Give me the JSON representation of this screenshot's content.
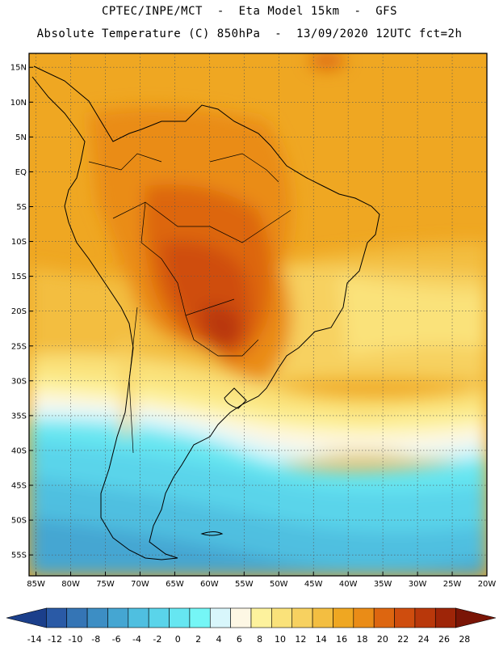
{
  "header": {
    "line1": "CPTEC/INPE/MCT  -  Eta Model 15km  -  GFS",
    "line2": "Absolute Temperature (C) 850hPa  -  13/09/2020 12UTC fct=2h"
  },
  "axes": {
    "lat_labels": [
      "15N",
      "10N",
      "5N",
      "EQ",
      "5S",
      "10S",
      "15S",
      "20S",
      "25S",
      "30S",
      "35S",
      "40S",
      "45S",
      "50S",
      "55S"
    ],
    "lat_values": [
      15,
      10,
      5,
      0,
      -5,
      -10,
      -15,
      -20,
      -25,
      -30,
      -35,
      -40,
      -45,
      -50,
      -55
    ],
    "lon_labels": [
      "85W",
      "80W",
      "75W",
      "70W",
      "65W",
      "60W",
      "55W",
      "50W",
      "45W",
      "40W",
      "35W",
      "30W",
      "25W",
      "20W"
    ],
    "lon_values": [
      -85,
      -80,
      -75,
      -70,
      -65,
      -60,
      -55,
      -50,
      -45,
      -40,
      -35,
      -30,
      -25,
      -20
    ],
    "lon_range": [
      -86,
      -20
    ],
    "lat_range": [
      -58,
      17
    ]
  },
  "colorbar": {
    "labels": [
      "-14",
      "-12",
      "-10",
      "-8",
      "-6",
      "-4",
      "-2",
      "0",
      "2",
      "4",
      "6",
      "8",
      "10",
      "12",
      "14",
      "16",
      "18",
      "20",
      "22",
      "24",
      "26",
      "28"
    ],
    "colors": [
      "#1b3f8b",
      "#2a5aa6",
      "#3575b5",
      "#3d8ec4",
      "#45a6d2",
      "#4fbfe0",
      "#5ad4ea",
      "#66e6f1",
      "#75f6f6",
      "#d8f6fb",
      "#fdf7e4",
      "#fdf29d",
      "#fae27a",
      "#f7d160",
      "#f3be41",
      "#efa722",
      "#ea8c17",
      "#dd6610",
      "#cf4d0e",
      "#b9380b",
      "#9e2508",
      "#7a1506"
    ]
  }
}
